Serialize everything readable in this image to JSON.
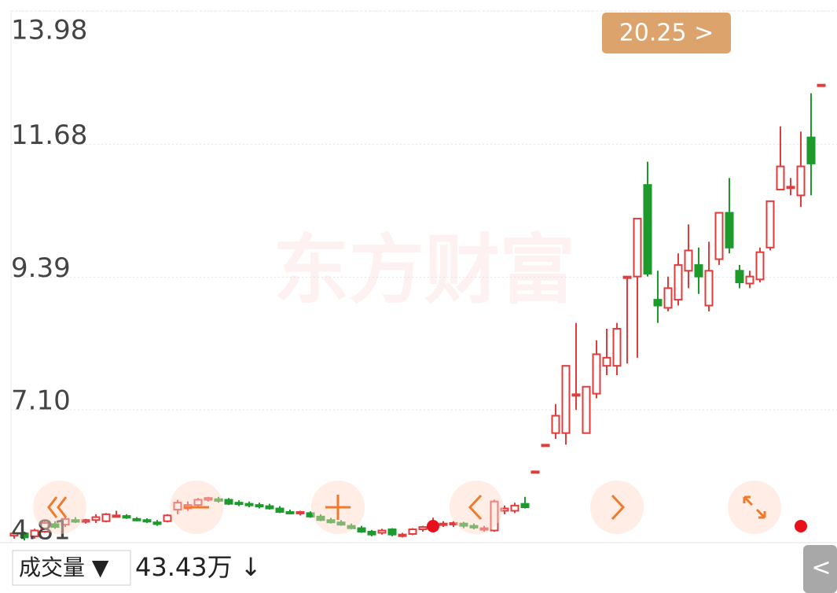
{
  "chart_data": {
    "type": "candlestick",
    "ylim": [
      4.81,
      13.98
    ],
    "yticks": [
      13.98,
      11.68,
      9.39,
      {
        "value": 7.1,
        "label": "7.10"
      },
      4.81
    ],
    "grid": true,
    "up_color": "#e23b3b",
    "down_color": "#1c9a2c",
    "watermark": "东方财富",
    "price_tag": "20.25 >",
    "open": [
      4.93,
      4.97,
      4.92,
      5.0,
      5.13,
      5.12,
      5.2,
      5.17,
      5.2,
      5.18,
      5.28,
      5.27,
      5.22,
      5.2,
      5.16,
      5.18,
      5.38,
      5.4,
      5.46,
      5.55,
      5.56,
      5.55,
      5.5,
      5.48,
      5.46,
      5.44,
      5.4,
      5.34,
      5.32,
      5.32,
      5.26,
      5.2,
      5.16,
      5.1,
      5.06,
      5.0,
      4.98,
      5.04,
      4.94,
      4.96,
      5.04,
      5.1,
      5.12,
      5.13,
      5.14,
      5.1,
      5.04,
      5.02,
      5.36,
      5.36,
      5.48,
      6.04,
      6.5,
      6.7,
      6.7,
      7.37,
      6.7,
      7.38,
      7.86,
      7.86,
      9.4,
      9.4,
      10.98,
      9.0,
      8.86,
      9.0,
      9.5,
      9.6,
      8.9,
      9.7,
      10.5,
      9.5,
      9.28,
      9.35,
      9.9,
      10.9,
      10.95,
      10.8,
      11.8,
      12.71
    ],
    "high": [
      5.0,
      5.0,
      5.05,
      5.2,
      5.18,
      5.25,
      5.25,
      5.22,
      5.3,
      5.32,
      5.36,
      5.3,
      5.25,
      5.23,
      5.2,
      5.3,
      5.55,
      5.52,
      5.58,
      5.6,
      5.6,
      5.58,
      5.54,
      5.52,
      5.5,
      5.48,
      5.44,
      5.38,
      5.36,
      5.35,
      5.3,
      5.24,
      5.2,
      5.14,
      5.1,
      5.03,
      5.05,
      5.06,
      4.98,
      5.06,
      5.1,
      5.24,
      5.18,
      5.18,
      5.17,
      5.14,
      5.1,
      5.55,
      5.45,
      5.5,
      5.6,
      6.04,
      6.5,
      7.2,
      7.86,
      8.6,
      7.5,
      8.3,
      8.5,
      8.6,
      9.4,
      10.4,
      11.38,
      9.5,
      9.4,
      9.8,
      10.3,
      9.9,
      10.0,
      10.5,
      11.1,
      9.6,
      9.5,
      9.9,
      10.7,
      11.99,
      11.1,
      11.9,
      12.56,
      12.71
    ],
    "low": [
      4.88,
      4.85,
      4.88,
      4.98,
      5.05,
      5.08,
      5.15,
      5.14,
      5.15,
      5.16,
      5.25,
      5.22,
      5.18,
      5.15,
      5.1,
      5.16,
      5.3,
      5.36,
      5.42,
      5.52,
      5.5,
      5.46,
      5.44,
      5.42,
      5.4,
      5.38,
      5.32,
      5.3,
      5.28,
      5.24,
      5.18,
      5.14,
      5.1,
      5.04,
      4.98,
      4.92,
      4.95,
      4.92,
      4.9,
      4.94,
      5.0,
      5.06,
      5.08,
      5.08,
      5.06,
      5.04,
      5.0,
      5.0,
      5.3,
      5.32,
      5.4,
      6.04,
      6.5,
      6.6,
      6.5,
      7.1,
      6.7,
      7.3,
      7.7,
      7.7,
      7.9,
      8.0,
      9.4,
      8.6,
      8.8,
      8.9,
      9.2,
      9.1,
      8.8,
      9.6,
      9.8,
      9.2,
      9.2,
      9.3,
      9.85,
      10.91,
      10.8,
      10.6,
      10.8,
      12.71
    ],
    "close": [
      4.97,
      4.9,
      5.02,
      5.15,
      5.08,
      5.22,
      5.17,
      5.2,
      5.25,
      5.3,
      5.28,
      5.24,
      5.2,
      5.18,
      5.13,
      5.28,
      5.5,
      5.46,
      5.55,
      5.58,
      5.53,
      5.48,
      5.48,
      5.46,
      5.44,
      5.4,
      5.34,
      5.32,
      5.34,
      5.26,
      5.2,
      5.16,
      5.12,
      5.06,
      5.0,
      4.95,
      5.02,
      4.95,
      4.95,
      5.04,
      5.08,
      5.15,
      5.14,
      5.15,
      5.1,
      5.07,
      5.06,
      5.52,
      5.4,
      5.45,
      5.42,
      6.04,
      6.5,
      7.0,
      7.86,
      7.37,
      7.5,
      8.06,
      8.0,
      8.5,
      9.4,
      10.4,
      9.45,
      8.9,
      9.2,
      9.6,
      9.85,
      9.4,
      9.5,
      10.5,
      9.9,
      9.3,
      9.4,
      9.82,
      10.7,
      11.3,
      10.95,
      11.3,
      11.35,
      12.71
    ]
  },
  "volume_bar": {
    "selector": "成交量 ▼",
    "value_label": "43.43万 ↓",
    "back": "<"
  }
}
